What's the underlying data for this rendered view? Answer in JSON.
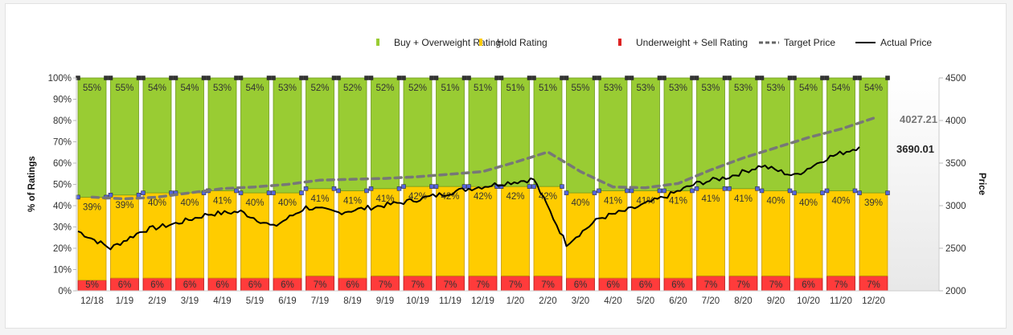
{
  "chart_data": {
    "type": "bar",
    "stacked": true,
    "categories": [
      "12/18",
      "1/19",
      "2/19",
      "3/19",
      "4/19",
      "5/19",
      "6/19",
      "7/19",
      "8/19",
      "9/19",
      "10/19",
      "11/19",
      "12/19",
      "1/20",
      "2/20",
      "3/20",
      "4/20",
      "5/20",
      "6/20",
      "7/20",
      "8/20",
      "9/20",
      "10/20",
      "11/20",
      "12/20"
    ],
    "series": [
      {
        "name": "Underweight + Sell Rating",
        "color": "#ff3b3b",
        "values": [
          5,
          6,
          6,
          6,
          6,
          6,
          6,
          7,
          6,
          7,
          7,
          7,
          7,
          7,
          7,
          6,
          6,
          6,
          6,
          7,
          7,
          7,
          6,
          7,
          7
        ]
      },
      {
        "name": "Hold Rating",
        "color": "#ffcc00",
        "values": [
          39,
          39,
          40,
          40,
          41,
          40,
          40,
          41,
          41,
          41,
          42,
          42,
          42,
          42,
          42,
          40,
          41,
          41,
          41,
          41,
          41,
          40,
          40,
          40,
          39
        ]
      },
      {
        "name": "Buy + Overweight Rating",
        "color": "#99cc33",
        "values": [
          55,
          55,
          54,
          54,
          53,
          54,
          53,
          52,
          52,
          52,
          52,
          51,
          51,
          51,
          51,
          55,
          53,
          53,
          53,
          53,
          53,
          53,
          54,
          54,
          54
        ]
      }
    ],
    "lines": [
      {
        "name": "Target Price",
        "style": "dashed",
        "color": "#777777",
        "values": [
          3100,
          3080,
          3100,
          3150,
          3200,
          3220,
          3250,
          3300,
          3310,
          3320,
          3340,
          3370,
          3400,
          3510,
          3630,
          3400,
          3220,
          3210,
          3260,
          3420,
          3560,
          3680,
          3800,
          3900,
          4027.21
        ]
      },
      {
        "name": "Actual Price",
        "style": "solid",
        "color": "#000000",
        "values": [
          2700,
          2500,
          2710,
          2790,
          2900,
          2930,
          2750,
          2980,
          2920,
          2980,
          3040,
          3120,
          3200,
          3260,
          3310,
          2550,
          2850,
          2960,
          3100,
          3260,
          3340,
          3470,
          3350,
          3560,
          3690.01
        ]
      }
    ],
    "last_values": {
      "target_price": "4027.21",
      "actual_price": "3690.01"
    },
    "y_left": {
      "label": "% of Ratings",
      "ticks": [
        "0%",
        "10%",
        "20%",
        "30%",
        "40%",
        "50%",
        "60%",
        "70%",
        "80%",
        "90%",
        "100%"
      ],
      "range": [
        0,
        100
      ]
    },
    "y_right": {
      "label": "Price",
      "ticks": [
        "2000",
        "2500",
        "3000",
        "3500",
        "4000",
        "4500"
      ],
      "range": [
        2000,
        4500
      ]
    },
    "legend": {
      "position": "top-right",
      "items": [
        {
          "label": "Buy + Overweight Rating",
          "type": "swatch",
          "color": "#99cc33"
        },
        {
          "label": "Hold Rating",
          "type": "swatch",
          "color": "#ffcc00"
        },
        {
          "label": "Underweight + Sell Rating",
          "type": "swatch",
          "color": "#dd2222"
        },
        {
          "label": "Target Price",
          "type": "dashed",
          "color": "#666666"
        },
        {
          "label": "Actual Price",
          "type": "solid",
          "color": "#000000"
        }
      ]
    },
    "grid": false
  }
}
